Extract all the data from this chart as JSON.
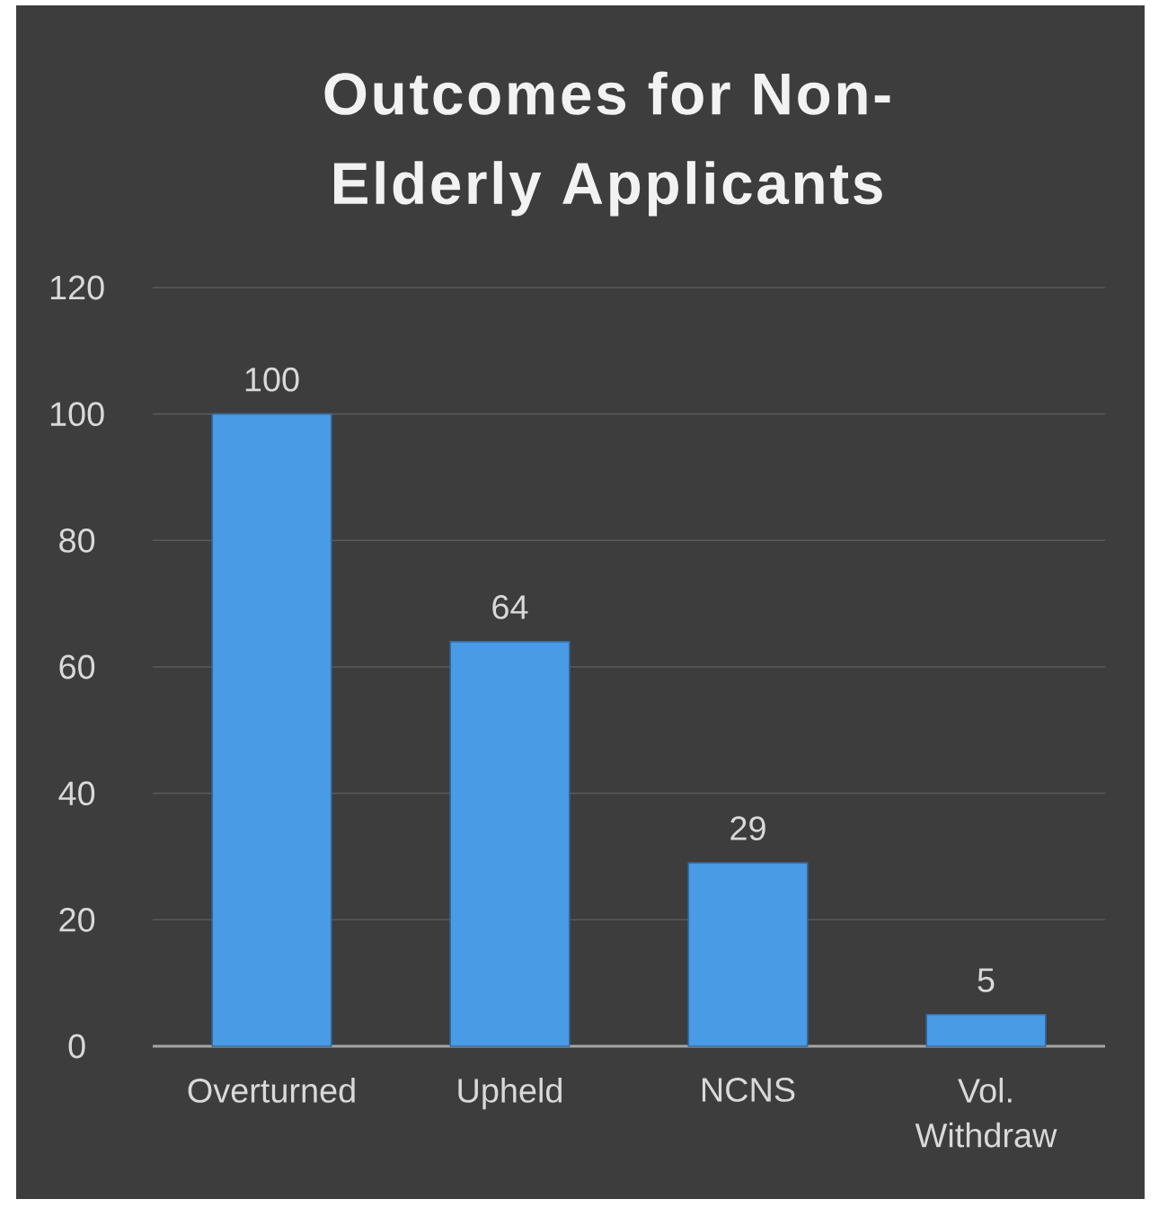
{
  "chart_data": {
    "type": "bar",
    "title": "Outcomes for Non-Elderly Applicants",
    "categories": [
      "Overturned",
      "Upheld",
      "NCNS",
      "Vol. Withdraw"
    ],
    "values": [
      100,
      64,
      29,
      5
    ],
    "color": "#4a9be6",
    "ylim": [
      0,
      120
    ],
    "yticks": [
      0,
      20,
      40,
      60,
      80,
      100,
      120
    ],
    "grid": "y",
    "data_labels": true
  }
}
